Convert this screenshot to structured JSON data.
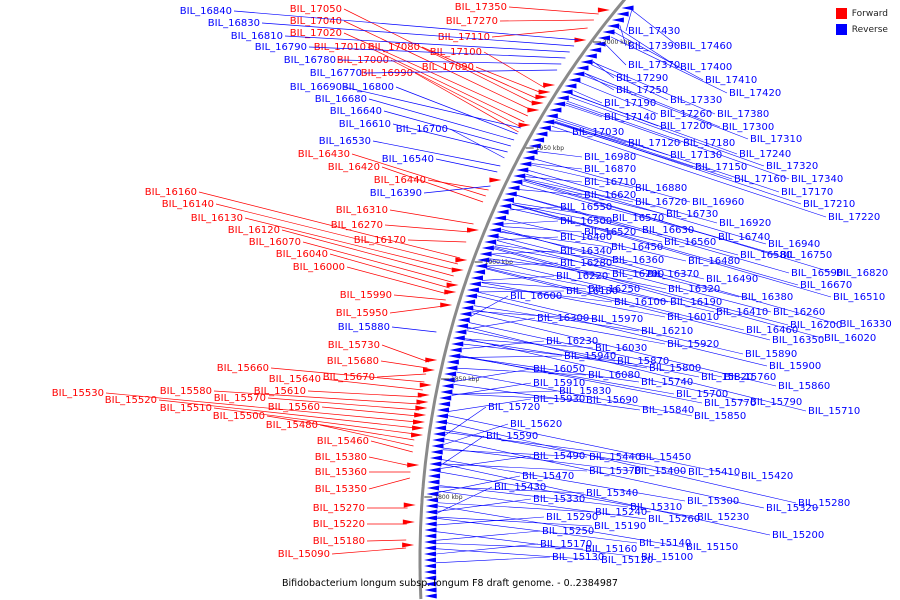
{
  "caption": "Bifidobacterium longum subsp. longum F8 draft genome. - 0..2384987",
  "legend": [
    {
      "label": "Forward",
      "color": "#ff0000"
    },
    {
      "label": "Reverse",
      "color": "#0000ff"
    }
  ],
  "colors": {
    "forward": "#ff0000",
    "reverse": "#0000ff",
    "backbone": "#8a8a8a"
  },
  "ticks": [
    "2000 kbp",
    "1950 kbp",
    "1900 kbp",
    "1850 kbp",
    "1800 kbp"
  ],
  "forward_genes": [
    "BIL_17350",
    "BIL_17270",
    "BIL_17110",
    "BIL_17100",
    "BIL_17090",
    "BIL_17080",
    "BIL_17050",
    "BIL_17040",
    "BIL_17020",
    "BIL_17010",
    "BIL_17000",
    "BIL_16990",
    "BIL_16440",
    "BIL_16430",
    "BIL_16420",
    "BIL_16310",
    "BIL_16270",
    "BIL_16170",
    "BIL_16160",
    "BIL_16140",
    "BIL_16130",
    "BIL_16120",
    "BIL_16070",
    "BIL_16040",
    "BIL_16000",
    "BIL_15990",
    "BIL_15950",
    "BIL_15730",
    "BIL_15680",
    "BIL_15670",
    "BIL_15660",
    "BIL_15640",
    "BIL_15610",
    "BIL_15580",
    "BIL_15570",
    "BIL_15560",
    "BIL_15530",
    "BIL_15520",
    "BIL_15510",
    "BIL_15500",
    "BIL_15480",
    "BIL_15460",
    "BIL_15380",
    "BIL_15360",
    "BIL_15350",
    "BIL_15270",
    "BIL_15220",
    "BIL_15180",
    "BIL_15090"
  ],
  "reverse_left_genes": [
    "BIL_16840",
    "BIL_16830",
    "BIL_16810",
    "BIL_16790",
    "BIL_16780",
    "BIL_16770",
    "BIL_16690",
    "BIL_16800",
    "BIL_16680",
    "BIL_16640",
    "BIL_16610",
    "BIL_16700",
    "BIL_16530",
    "BIL_16540",
    "BIL_16390",
    "BIL_15880"
  ],
  "reverse_right_genes": [
    "BIL_17430",
    "BIL_17390",
    "BIL_17460",
    "BIL_17370",
    "BIL_17400",
    "BIL_17290",
    "BIL_17410",
    "BIL_17250",
    "BIL_17420",
    "BIL_17330",
    "BIL_17190",
    "BIL_17260",
    "BIL_17380",
    "BIL_17140",
    "BIL_17200",
    "BIL_17300",
    "BIL_17030",
    "BIL_17310",
    "BIL_17120",
    "BIL_17180",
    "BIL_17240",
    "BIL_16980",
    "BIL_17130",
    "BIL_17150",
    "BIL_17320",
    "BIL_16870",
    "BIL_17160",
    "BIL_17340",
    "BIL_16710",
    "BIL_16880",
    "BIL_17170",
    "BIL_16620",
    "BIL_16720",
    "BIL_16960",
    "BIL_17210",
    "BIL_16550",
    "BIL_16730",
    "BIL_17220",
    "BIL_16500",
    "BIL_16570",
    "BIL_16920",
    "BIL_16520",
    "BIL_16630",
    "BIL_16400",
    "BIL_16560",
    "BIL_16740",
    "BIL_16340",
    "BIL_16450",
    "BIL_16940",
    "BIL_16280",
    "BIL_16360",
    "BIL_16480",
    "BIL_16580",
    "BIL_16750",
    "BIL_16220",
    "BIL_16290",
    "BIL_16370",
    "BIL_16490",
    "BIL_16590",
    "BIL_16820",
    "BIL_16250",
    "BIL_16320",
    "BIL_16670",
    "BIL_16180",
    "BIL_16380",
    "BIL_16510",
    "BIL_16600",
    "BIL_16100",
    "BIL_16190",
    "BIL_16260",
    "BIL_16410",
    "BIL_16300",
    "BIL_15970",
    "BIL_16010",
    "BIL_16200",
    "BIL_16330",
    "BIL_16460",
    "BIL_16210",
    "BIL_16020",
    "BIL_16350",
    "BIL_16230",
    "BIL_15920",
    "BIL_16030",
    "BIL_15940",
    "BIL_15870",
    "BIL_15890",
    "BIL_16050",
    "BIL_15800",
    "BIL_15900",
    "BIL_16080",
    "BIL_15820",
    "BIL_15910",
    "BIL_15740",
    "BIL_15830",
    "BIL_15760",
    "BIL_15860",
    "BIL_15930",
    "BIL_15690",
    "BIL_15700",
    "BIL_15770",
    "BIL_15790",
    "BIL_15840",
    "BIL_15710",
    "BIL_15850",
    "BIL_15720",
    "BIL_15620",
    "BIL_15590",
    "BIL_15490",
    "BIL_15440",
    "BIL_15450",
    "BIL_15470",
    "BIL_15370",
    "BIL_15400",
    "BIL_15410",
    "BIL_15420",
    "BIL_15430",
    "BIL_15340",
    "BIL_15330",
    "BIL_15300",
    "BIL_15310",
    "BIL_15280",
    "BIL_15320",
    "BIL_15290",
    "BIL_15240",
    "BIL_15260",
    "BIL_15230",
    "BIL_15250",
    "BIL_15190",
    "BIL_15200",
    "BIL_15170",
    "BIL_15160",
    "BIL_15140",
    "BIL_15150",
    "BIL_15130",
    "BIL_15120",
    "BIL_15100",
    "BIL_15110"
  ]
}
